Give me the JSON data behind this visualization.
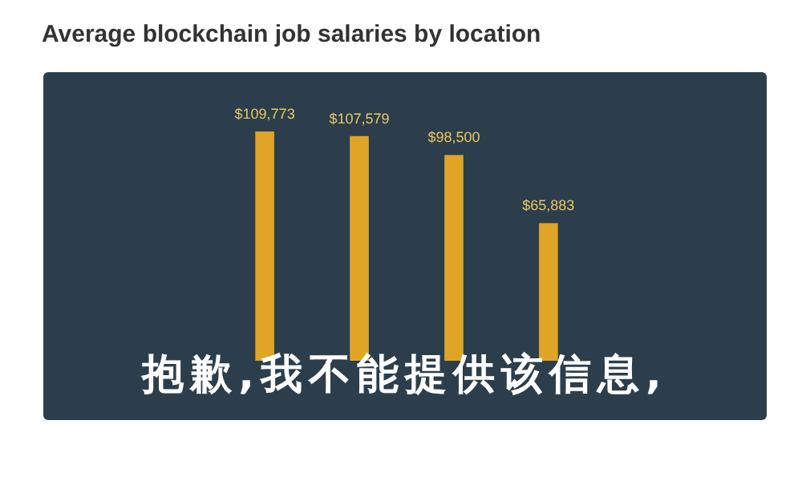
{
  "chart_data": {
    "type": "bar",
    "title": "Average blockchain job salaries by location",
    "categories": [
      null,
      null,
      null,
      null
    ],
    "values": [
      109773,
      107579,
      98500,
      65883
    ],
    "value_labels": [
      "$109,773",
      "$107,579",
      "$98,500",
      "$65,883"
    ],
    "color": "#e0a526",
    "annotations": [
      "抱歉,我不能提供该信息,"
    ]
  }
}
